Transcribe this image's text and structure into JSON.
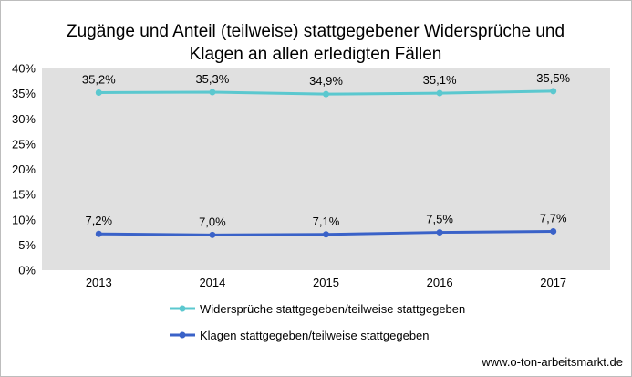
{
  "chart_data": {
    "type": "line",
    "title_lines": [
      "Zugänge und Anteil (teilweise) stattgegebener Widersprüche und",
      "Klagen an allen erledigten Fällen"
    ],
    "categories": [
      "2013",
      "2014",
      "2015",
      "2016",
      "2017"
    ],
    "ylim": [
      0,
      40
    ],
    "y_ticks": [
      0,
      5,
      10,
      15,
      20,
      25,
      30,
      35,
      40
    ],
    "y_tick_labels": [
      "0%",
      "5%",
      "10%",
      "15%",
      "20%",
      "25%",
      "30%",
      "35%",
      "40%"
    ],
    "grid": false,
    "plot_background": "#e0e0e0",
    "legend_position": "bottom-left",
    "series": [
      {
        "name": "Widersprüche stattgegeben/teilweise stattgegeben",
        "values": [
          35.2,
          35.3,
          34.9,
          35.1,
          35.5
        ],
        "labels": [
          "35,2%",
          "35,3%",
          "34,9%",
          "35,1%",
          "35,5%"
        ],
        "color": "#5bc8cf"
      },
      {
        "name": "Klagen stattgegeben/teilweise stattgegeben",
        "values": [
          7.2,
          7.0,
          7.1,
          7.5,
          7.7
        ],
        "labels": [
          "7,2%",
          "7,0%",
          "7,1%",
          "7,5%",
          "7,7%"
        ],
        "color": "#3a62c8"
      }
    ],
    "source": "www.o-ton-arbeitsmarkt.de"
  }
}
